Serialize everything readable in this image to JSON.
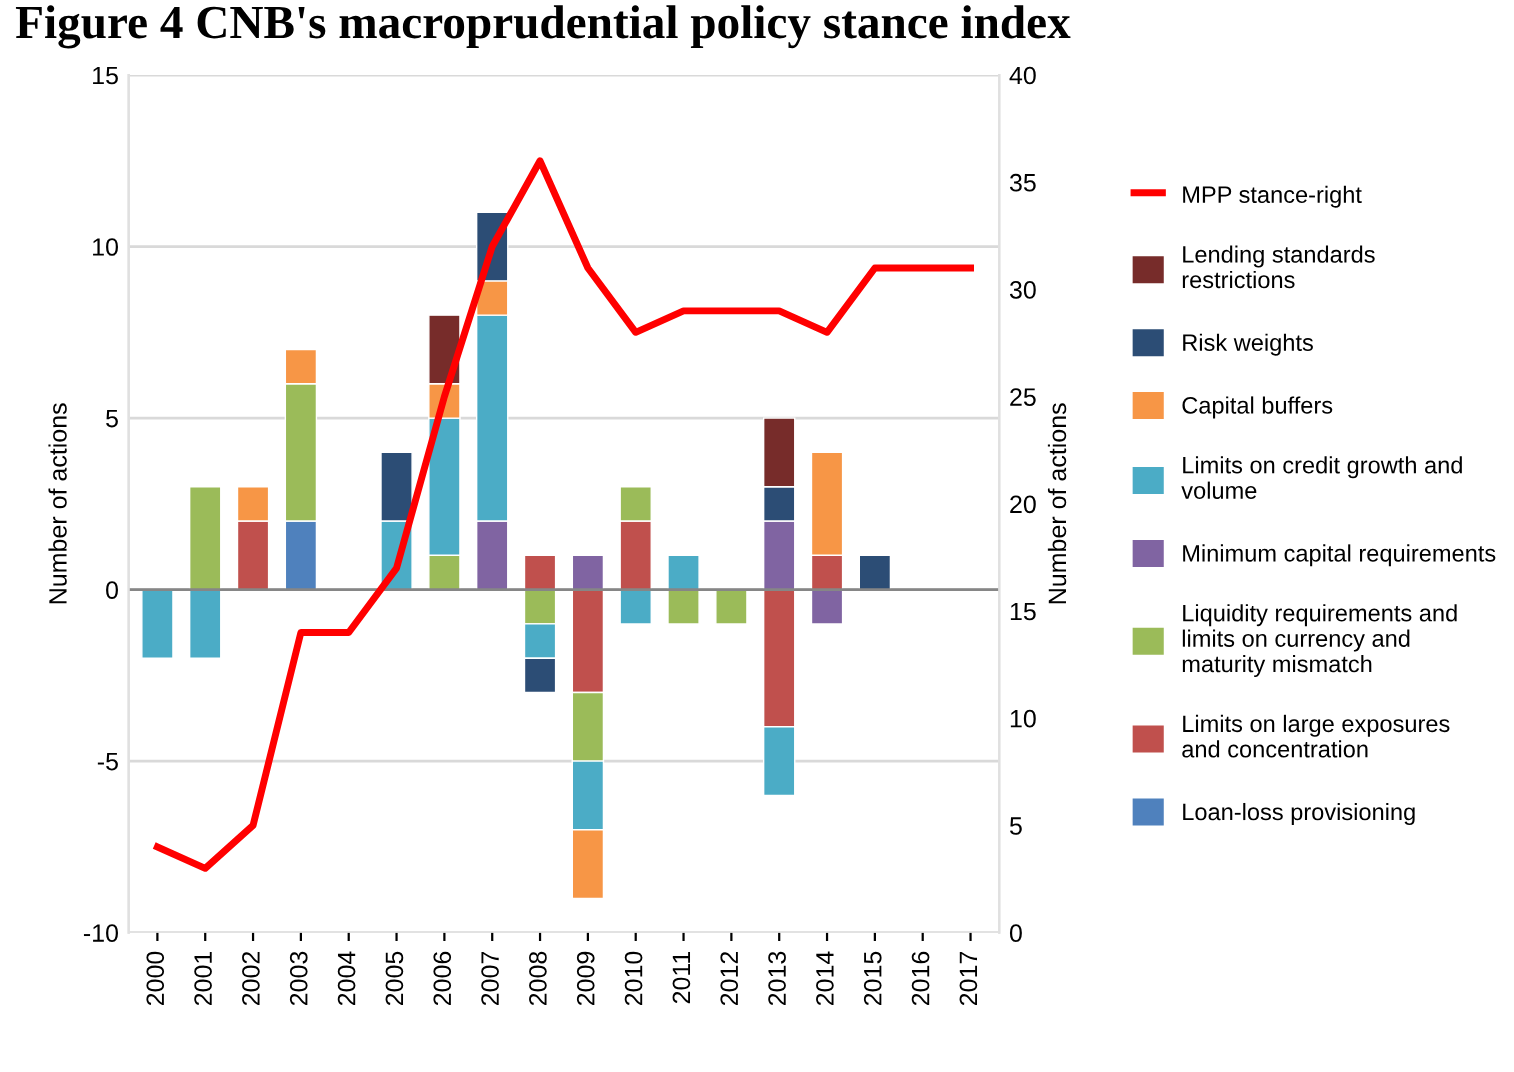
{
  "chart_data": {
    "type": "bar",
    "stacked": true,
    "title": "Figure 4 CNB's macroprudential policy stance index",
    "ylabel": "Number of actions",
    "y2label": "Number of actions",
    "categories": [
      "2000",
      "2001",
      "2002",
      "2003",
      "2004",
      "2005",
      "2006",
      "2007",
      "2008",
      "2009",
      "2010",
      "2011",
      "2012",
      "2013",
      "2014",
      "2015",
      "2016",
      "2017"
    ],
    "series": [
      {
        "name": "Loan-loss provisioning",
        "color": "#4f81bd",
        "values": [
          null,
          null,
          null,
          2,
          null,
          null,
          null,
          null,
          null,
          null,
          null,
          null,
          null,
          null,
          null,
          null,
          null,
          null
        ]
      },
      {
        "name": "Limits on large exposures and concentration",
        "color": "#c0504d",
        "values": [
          null,
          null,
          2,
          null,
          null,
          null,
          null,
          null,
          1,
          -3,
          2,
          null,
          null,
          -4,
          1,
          null,
          null,
          null
        ]
      },
      {
        "name": "Liquidity requirements and limits on currency and maturity mismatch",
        "color": "#9bbb59",
        "values": [
          null,
          3,
          null,
          4,
          null,
          null,
          1,
          null,
          -1,
          -2,
          1,
          -1,
          -1,
          null,
          null,
          null,
          null,
          null
        ]
      },
      {
        "name": "Minimum capital requirements",
        "color": "#8064a2",
        "values": [
          null,
          null,
          null,
          null,
          null,
          null,
          null,
          2,
          null,
          1,
          null,
          null,
          null,
          2,
          -1,
          null,
          null,
          null
        ]
      },
      {
        "name": "Limits on credit growth and volume",
        "color": "#4bacc6",
        "values": [
          -2,
          -2,
          null,
          null,
          null,
          2,
          4,
          6,
          -1,
          -2,
          -1,
          1,
          null,
          -2,
          null,
          null,
          null,
          null
        ]
      },
      {
        "name": "Capital buffers",
        "color": "#f79646",
        "values": [
          null,
          null,
          1,
          1,
          null,
          null,
          1,
          1,
          null,
          -2,
          null,
          null,
          null,
          null,
          3,
          null,
          null,
          null
        ]
      },
      {
        "name": "Risk weights",
        "color": "#2c4d75",
        "values": [
          null,
          null,
          null,
          null,
          null,
          2,
          null,
          2,
          -1,
          null,
          null,
          null,
          null,
          1,
          null,
          1,
          null,
          null
        ]
      },
      {
        "name": "Lending standards restrictions",
        "color": "#772c2a",
        "values": [
          null,
          null,
          null,
          null,
          null,
          null,
          2,
          null,
          null,
          null,
          null,
          null,
          null,
          2,
          null,
          null,
          null,
          null
        ]
      },
      {
        "name": "MPP stance-right",
        "type": "line",
        "axis": "y2",
        "color": "#ff0000",
        "values": [
          4,
          3,
          5,
          14,
          14,
          17,
          25,
          32,
          36,
          31,
          28,
          29,
          29,
          29,
          28,
          31,
          31,
          31
        ]
      }
    ],
    "ylim": [
      -10,
      15
    ],
    "yticks": [
      -10,
      -5,
      0,
      5,
      10,
      15
    ],
    "y2lim": [
      0,
      40
    ],
    "y2ticks": [
      0,
      5,
      10,
      15,
      20,
      25,
      30,
      35,
      40
    ],
    "grid": "y",
    "legend": "right",
    "marker": "none",
    "line_style": "solid"
  }
}
